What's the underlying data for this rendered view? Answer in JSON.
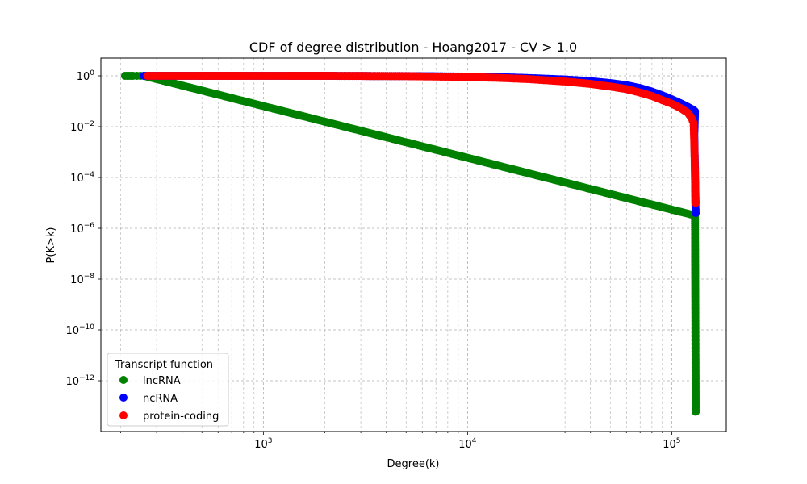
{
  "chart_data": {
    "type": "scatter",
    "title": "CDF of degree distribution - Hoang2017 - CV > 1.0",
    "xlabel": "Degree(k)",
    "ylabel": "P(K>k)",
    "x_scale": "log",
    "y_scale": "log",
    "xlim": [
      160,
      185000
    ],
    "ylim": [
      1e-14,
      5
    ],
    "x_ticks": [
      {
        "base": "10",
        "exp": "3",
        "value": 1000
      },
      {
        "base": "10",
        "exp": "4",
        "value": 10000
      },
      {
        "base": "10",
        "exp": "5",
        "value": 100000
      }
    ],
    "y_ticks": [
      {
        "label": "10",
        "exp": "0",
        "value": 1,
        "kind": "power"
      },
      {
        "label": "10",
        "exp": "−2",
        "value": 0.01,
        "kind": "power"
      },
      {
        "label": "10",
        "exp": "−4",
        "value": 0.0001,
        "kind": "power"
      },
      {
        "label": "10",
        "exp": "−6",
        "value": 1e-06,
        "kind": "power"
      },
      {
        "label": "10",
        "exp": "−8",
        "value": 1e-08,
        "kind": "power"
      },
      {
        "label": "10",
        "exp": "−10",
        "value": 1e-10,
        "kind": "power"
      },
      {
        "label": "10",
        "exp": "−12",
        "value": 1e-12,
        "kind": "power"
      }
    ],
    "grid": true,
    "legend": {
      "title": "Transcript function",
      "placement": "lower-left"
    },
    "series": [
      {
        "name": "lncRNA",
        "color": "#008000",
        "points": [
          [
            210,
            1
          ],
          [
            215,
            1
          ],
          [
            220,
            1
          ],
          [
            225,
            1
          ],
          [
            230,
            1
          ],
          [
            240,
            1
          ],
          [
            250,
            1
          ],
          [
            260,
            1
          ],
          [
            130000,
            3.2e-06
          ],
          [
            131000,
            6e-14
          ]
        ]
      },
      {
        "name": "ncRNA",
        "color": "#0000ff",
        "points": [
          [
            260,
            1
          ],
          [
            500,
            1
          ],
          [
            1000,
            1
          ],
          [
            2000,
            1
          ],
          [
            3000,
            0.99
          ],
          [
            5000,
            0.98
          ],
          [
            7000,
            0.96
          ],
          [
            10000,
            0.93
          ],
          [
            15000,
            0.88
          ],
          [
            20000,
            0.82
          ],
          [
            30000,
            0.72
          ],
          [
            40000,
            0.62
          ],
          [
            50000,
            0.52
          ],
          [
            60000,
            0.43
          ],
          [
            70000,
            0.33
          ],
          [
            80000,
            0.24
          ],
          [
            90000,
            0.17
          ],
          [
            100000,
            0.12
          ],
          [
            110000,
            0.085
          ],
          [
            120000,
            0.06
          ],
          [
            125000,
            0.05
          ],
          [
            128000,
            0.045
          ],
          [
            130000,
            0.04
          ],
          [
            129000,
            0.005
          ],
          [
            129500,
            0.0008
          ],
          [
            130000,
            0.0002
          ],
          [
            130200,
            5e-05
          ],
          [
            130500,
            1e-05
          ],
          [
            131000,
            4e-06
          ]
        ]
      },
      {
        "name": "protein-coding",
        "color": "#ff0000",
        "points": [
          [
            270,
            1
          ],
          [
            500,
            1
          ],
          [
            1000,
            1
          ],
          [
            2000,
            1
          ],
          [
            3000,
            0.99
          ],
          [
            5000,
            0.97
          ],
          [
            7000,
            0.94
          ],
          [
            10000,
            0.9
          ],
          [
            15000,
            0.82
          ],
          [
            20000,
            0.74
          ],
          [
            30000,
            0.6
          ],
          [
            40000,
            0.48
          ],
          [
            50000,
            0.38
          ],
          [
            60000,
            0.3
          ],
          [
            70000,
            0.22
          ],
          [
            80000,
            0.16
          ],
          [
            90000,
            0.11
          ],
          [
            100000,
            0.08
          ],
          [
            110000,
            0.055
          ],
          [
            120000,
            0.035
          ],
          [
            125000,
            0.022
          ],
          [
            128000,
            0.014
          ],
          [
            129000,
            0.002
          ],
          [
            129500,
            0.0005
          ],
          [
            130000,
            0.0001
          ],
          [
            130500,
            3e-05
          ],
          [
            131000,
            1e-05
          ]
        ]
      }
    ]
  }
}
